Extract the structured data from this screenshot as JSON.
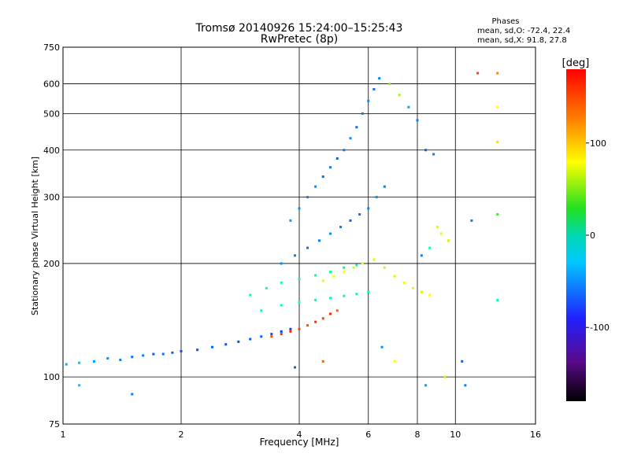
{
  "chart_data": {
    "type": "scatter",
    "title": "Tromsø 20140926 15:24:00–15:25:43",
    "subtitle": "RwPretec (8p)",
    "xlabel": "Frequency [MHz]",
    "ylabel": "Stationary phase Virtual Height [km]",
    "x_scale": "log",
    "y_scale": "log",
    "xlim": [
      1,
      16
    ],
    "ylim": [
      75,
      750
    ],
    "x_ticks": [
      1,
      2,
      4,
      6,
      8,
      10,
      16
    ],
    "x_tick_labels": [
      "1",
      "2",
      "4",
      "6",
      "8",
      "10",
      "16"
    ],
    "y_ticks": [
      75,
      100,
      200,
      300,
      400,
      500,
      600,
      750
    ],
    "y_tick_labels": [
      "75",
      "100",
      "200",
      "300",
      "400",
      "500",
      "600",
      "750"
    ],
    "grid": true,
    "stats": {
      "heading": "Phases",
      "line_o": "mean, sd,O: -72.4, 22.4",
      "line_x": "mean, sd,X:  91.8, 27.8"
    },
    "colorbar": {
      "label": "[deg]",
      "range": [
        -180,
        180
      ],
      "ticks": [
        100,
        0,
        -100
      ],
      "tick_labels": [
        "100",
        "0",
        "-100"
      ]
    },
    "traces": [
      {
        "name": "low-trace",
        "points": [
          [
            1.02,
            108,
            -85
          ],
          [
            1.1,
            109,
            -80
          ],
          [
            1.2,
            110,
            -90
          ],
          [
            1.3,
            112,
            -95
          ],
          [
            1.4,
            111,
            -100
          ],
          [
            1.5,
            113,
            -105
          ],
          [
            1.6,
            114,
            -100
          ],
          [
            1.7,
            115,
            -110
          ],
          [
            1.8,
            115,
            -105
          ],
          [
            1.9,
            116,
            -110
          ],
          [
            2.0,
            117,
            -112
          ],
          [
            2.2,
            118,
            -115
          ],
          [
            2.4,
            120,
            -110
          ],
          [
            2.6,
            122,
            -115
          ],
          [
            2.8,
            124,
            -115
          ],
          [
            3.0,
            126,
            -112
          ],
          [
            3.2,
            128,
            -108
          ],
          [
            3.4,
            130,
            -115
          ],
          [
            3.6,
            132,
            -120
          ],
          [
            3.8,
            134,
            -118
          ]
        ]
      },
      {
        "name": "o-cusp",
        "points": [
          [
            3.4,
            128,
            160
          ],
          [
            3.6,
            130,
            165
          ],
          [
            3.8,
            132,
            170
          ],
          [
            4.0,
            134,
            160
          ],
          [
            4.2,
            137,
            155
          ],
          [
            4.4,
            140,
            165
          ],
          [
            4.6,
            143,
            160
          ],
          [
            4.8,
            147,
            170
          ],
          [
            5.0,
            150,
            150
          ]
        ]
      },
      {
        "name": "f-trace-cyan",
        "points": [
          [
            3.0,
            165,
            -40
          ],
          [
            3.3,
            172,
            -45
          ],
          [
            3.6,
            178,
            -40
          ],
          [
            4.0,
            182,
            -35
          ],
          [
            4.4,
            186,
            -30
          ],
          [
            4.8,
            190,
            -25
          ],
          [
            5.2,
            195,
            -20
          ],
          [
            5.6,
            198,
            -30
          ],
          [
            3.2,
            150,
            -45
          ],
          [
            3.6,
            155,
            -40
          ],
          [
            4.0,
            158,
            -45
          ],
          [
            4.4,
            160,
            -35
          ],
          [
            4.8,
            162,
            -40
          ],
          [
            5.2,
            164,
            -30
          ],
          [
            5.6,
            166,
            -35
          ],
          [
            6.0,
            168,
            -30
          ]
        ]
      },
      {
        "name": "f-trace-yellow",
        "points": [
          [
            4.6,
            180,
            90
          ],
          [
            4.9,
            185,
            95
          ],
          [
            5.2,
            190,
            100
          ],
          [
            5.5,
            195,
            85
          ],
          [
            5.8,
            200,
            95
          ],
          [
            6.2,
            205,
            90
          ],
          [
            6.6,
            195,
            80
          ],
          [
            7.0,
            185,
            85
          ],
          [
            7.4,
            178,
            95
          ],
          [
            7.8,
            172,
            90
          ],
          [
            8.2,
            168,
            85
          ],
          [
            8.6,
            165,
            100
          ]
        ]
      },
      {
        "name": "f-trace-blue",
        "points": [
          [
            3.6,
            200,
            -95
          ],
          [
            3.9,
            210,
            -100
          ],
          [
            4.2,
            220,
            -105
          ],
          [
            4.5,
            230,
            -100
          ],
          [
            4.8,
            240,
            -95
          ],
          [
            5.1,
            250,
            -100
          ],
          [
            5.4,
            260,
            -110
          ],
          [
            5.7,
            270,
            -105
          ],
          [
            6.0,
            280,
            -100
          ],
          [
            6.3,
            300,
            -95
          ],
          [
            6.6,
            320,
            -100
          ],
          [
            3.8,
            260,
            -90
          ],
          [
            4.0,
            280,
            -95
          ],
          [
            4.2,
            300,
            -100
          ],
          [
            4.4,
            320,
            -95
          ],
          [
            4.6,
            340,
            -105
          ],
          [
            4.8,
            360,
            -100
          ],
          [
            5.0,
            380,
            -110
          ],
          [
            5.2,
            400,
            -100
          ],
          [
            5.4,
            430,
            -95
          ],
          [
            5.6,
            460,
            -105
          ],
          [
            5.8,
            500,
            -100
          ],
          [
            6.0,
            540,
            -95
          ],
          [
            6.2,
            580,
            -105
          ],
          [
            6.4,
            620,
            -100
          ]
        ]
      },
      {
        "name": "scatter-mixed",
        "points": [
          [
            6.8,
            600,
            60
          ],
          [
            7.2,
            560,
            70
          ],
          [
            7.6,
            520,
            -90
          ],
          [
            8.0,
            480,
            -100
          ],
          [
            8.4,
            400,
            -110
          ],
          [
            8.8,
            390,
            -100
          ],
          [
            9.0,
            250,
            90
          ],
          [
            9.2,
            240,
            95
          ],
          [
            8.6,
            220,
            -40
          ],
          [
            8.2,
            210,
            -100
          ],
          [
            9.6,
            230,
            80
          ],
          [
            10.4,
            110,
            -110
          ],
          [
            10.6,
            95,
            -100
          ],
          [
            12.8,
            520,
            100
          ],
          [
            12.8,
            420,
            110
          ],
          [
            12.8,
            270,
            30
          ],
          [
            12.8,
            160,
            -30
          ],
          [
            11.4,
            640,
            160
          ],
          [
            12.8,
            640,
            140
          ],
          [
            11.0,
            260,
            -100
          ],
          [
            9.4,
            100,
            80
          ],
          [
            8.4,
            95,
            -90
          ],
          [
            7.0,
            110,
            100
          ],
          [
            6.5,
            120,
            -95
          ],
          [
            4.6,
            110,
            150
          ],
          [
            3.9,
            106,
            -110
          ],
          [
            1.5,
            90,
            -100
          ],
          [
            1.1,
            95,
            -80
          ]
        ]
      }
    ]
  }
}
